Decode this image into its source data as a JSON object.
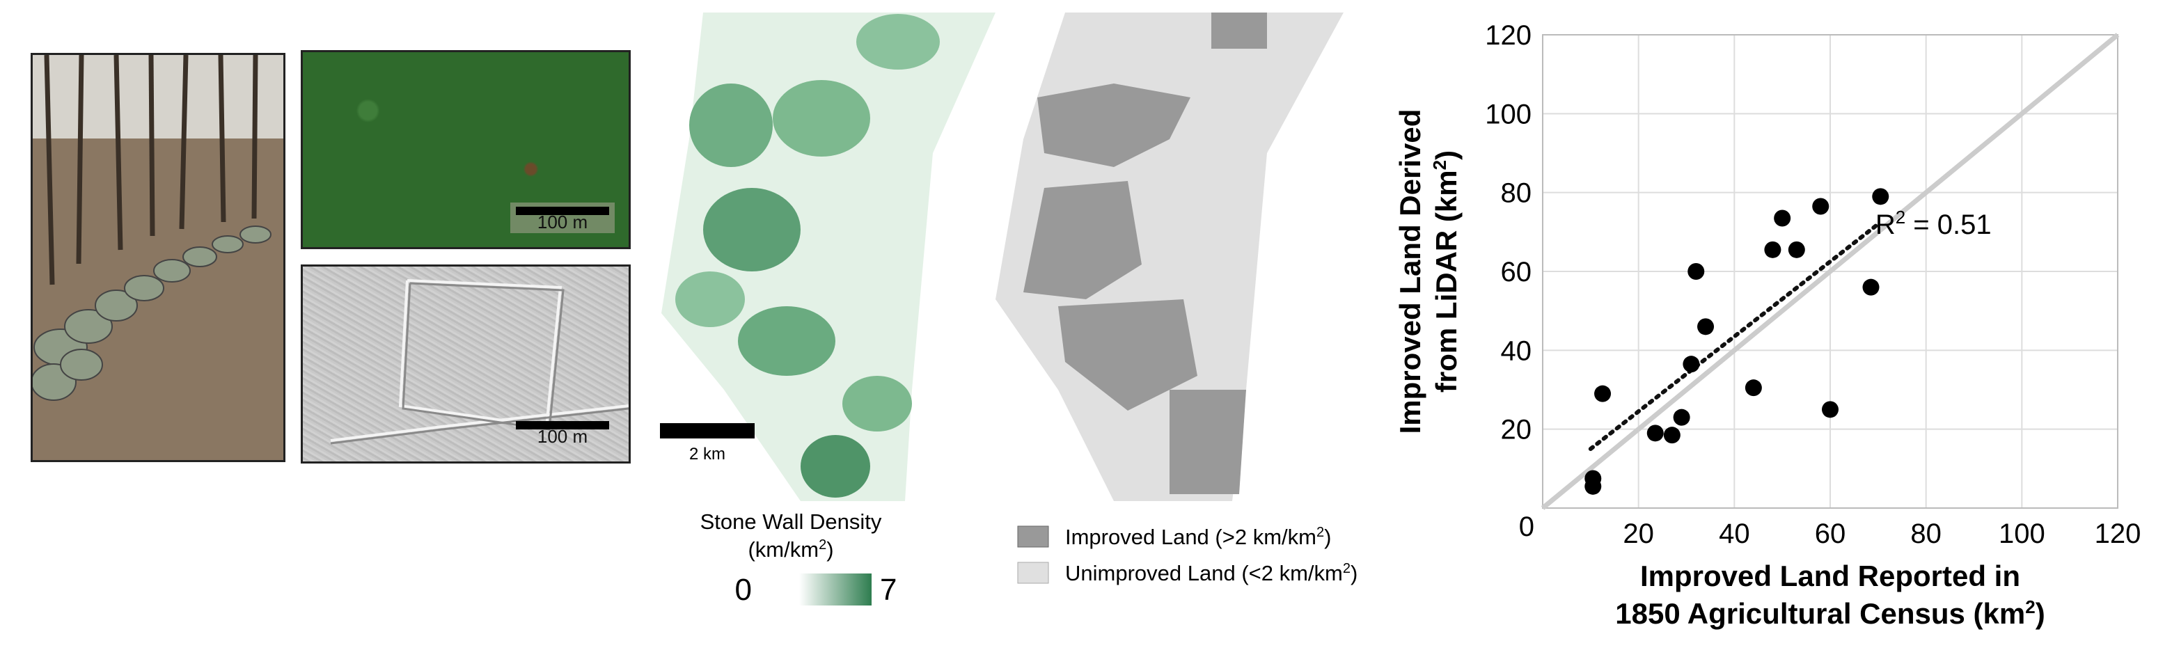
{
  "panels": {
    "ortho_scale": "100 m",
    "hillshade_scale": "100 m",
    "density_scale": "2 km",
    "density_legend_title_line1": "Stone Wall Density",
    "density_legend_title_line2": "(km/km",
    "density_legend_title_sup": "2",
    "density_legend_title_close": ")",
    "density_min": "0",
    "density_max": "7",
    "class_legend": [
      {
        "label": "Improved Land (>2 km/km",
        "sup": "2",
        "close": ")",
        "color": "#999999"
      },
      {
        "label": "Unimproved Land (<2 km/km",
        "sup": "2",
        "close": ")",
        "color": "#e0e0e0"
      }
    ],
    "colors": {
      "density_low": "#ffffff",
      "density_high": "#2e7d4f",
      "improved": "#999999",
      "unimproved": "#e0e0e0"
    }
  },
  "chart_data": {
    "type": "scatter",
    "xlabel_line1": "Improved Land Reported in",
    "xlabel_line2": "1850 Agricultural Census (km",
    "xlabel_sup": "2",
    "xlabel_close": ")",
    "ylabel_line1": "Improved Land Derived",
    "ylabel_line2": "from LiDAR (km",
    "ylabel_sup": "2",
    "ylabel_close": ")",
    "xlim": [
      0,
      120
    ],
    "ylim": [
      0,
      120
    ],
    "xticks": [
      0,
      20,
      40,
      60,
      80,
      100,
      120
    ],
    "yticks": [
      20,
      40,
      60,
      80,
      100,
      120
    ],
    "origin_label": "0",
    "grid": true,
    "annotation_text": "R",
    "annotation_sup": "2",
    "annotation_value": " = 0.51",
    "points": [
      {
        "x": 10.5,
        "y": 7.5
      },
      {
        "x": 10.5,
        "y": 5.5
      },
      {
        "x": 12.5,
        "y": 29
      },
      {
        "x": 23.5,
        "y": 19
      },
      {
        "x": 27,
        "y": 18.5
      },
      {
        "x": 29,
        "y": 23
      },
      {
        "x": 31,
        "y": 36.5
      },
      {
        "x": 32,
        "y": 60
      },
      {
        "x": 34,
        "y": 46
      },
      {
        "x": 44,
        "y": 30.5
      },
      {
        "x": 48,
        "y": 65.5
      },
      {
        "x": 50,
        "y": 73.5
      },
      {
        "x": 53,
        "y": 65.5
      },
      {
        "x": 58,
        "y": 76.5
      },
      {
        "x": 60,
        "y": 25
      },
      {
        "x": 68.5,
        "y": 56
      },
      {
        "x": 70.5,
        "y": 79
      }
    ],
    "one_to_one_line": {
      "x": [
        0,
        120
      ],
      "y": [
        0,
        120
      ]
    },
    "fit_line": {
      "x": [
        10,
        70
      ],
      "y": [
        15,
        72
      ]
    }
  }
}
